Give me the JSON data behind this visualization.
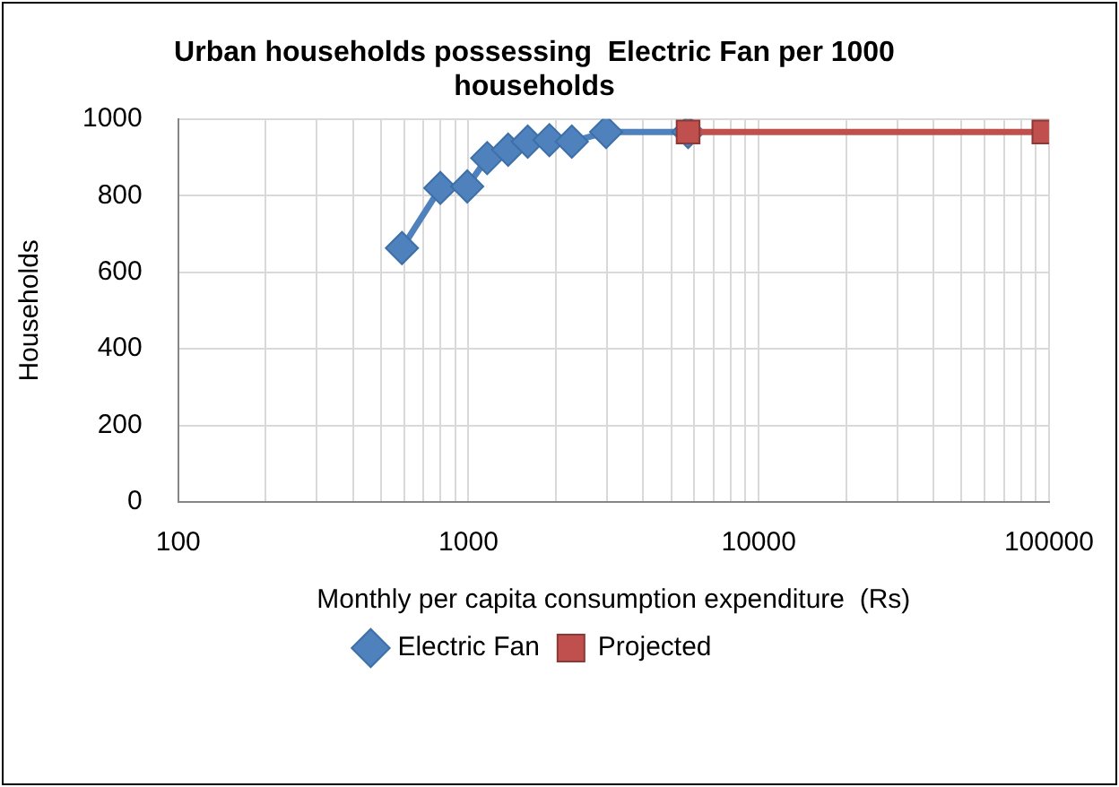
{
  "chart_data": {
    "type": "line",
    "title": "Urban households possessing  Electric Fan per 1000 households",
    "xlabel": "Monthly per capita consumption expenditure  (Rs)",
    "ylabel": "Households",
    "series": [
      {
        "name": "Electric Fan",
        "color": "#4f81bd",
        "marker": "diamond",
        "x": [
          590,
          800,
          990,
          1160,
          1370,
          1600,
          1900,
          2270,
          2980,
          5710
        ],
        "values": [
          663,
          820,
          824,
          898,
          920,
          941,
          945,
          941,
          966,
          966
        ]
      },
      {
        "name": "Projected",
        "color": "#c0504d",
        "marker": "square",
        "x": [
          5710,
          96000
        ],
        "values": [
          966,
          966
        ]
      }
    ],
    "log": "x",
    "xlim": [
      100,
      100000
    ],
    "xticks": [
      100,
      {
        "value": 200,
        "label": null
      },
      {
        "value": 300,
        "label": null
      },
      {
        "value": 400,
        "label": null
      },
      {
        "value": 500,
        "label": null
      },
      {
        "value": 600,
        "label": null
      },
      {
        "value": 700,
        "label": null
      },
      {
        "value": 800,
        "label": null
      },
      {
        "value": 900,
        "label": null
      },
      1000,
      {
        "value": 2000,
        "label": null
      },
      {
        "value": 3000,
        "label": null
      },
      {
        "value": 4000,
        "label": null
      },
      {
        "value": 5000,
        "label": null
      },
      {
        "value": 6000,
        "label": null
      },
      {
        "value": 7000,
        "label": null
      },
      {
        "value": 8000,
        "label": null
      },
      {
        "value": 9000,
        "label": null
      },
      10000,
      {
        "value": 20000,
        "label": null
      },
      {
        "value": 30000,
        "label": null
      },
      {
        "value": 40000,
        "label": null
      },
      {
        "value": 50000,
        "label": null
      },
      {
        "value": 60000,
        "label": null
      },
      {
        "value": 70000,
        "label": null
      },
      {
        "value": 80000,
        "label": null
      },
      {
        "value": 90000,
        "label": null
      },
      100000
    ],
    "ylim": [
      0,
      1000
    ],
    "yticks": [
      0,
      200,
      400,
      600,
      800,
      1000
    ],
    "grid": true,
    "legend": "bottom"
  }
}
